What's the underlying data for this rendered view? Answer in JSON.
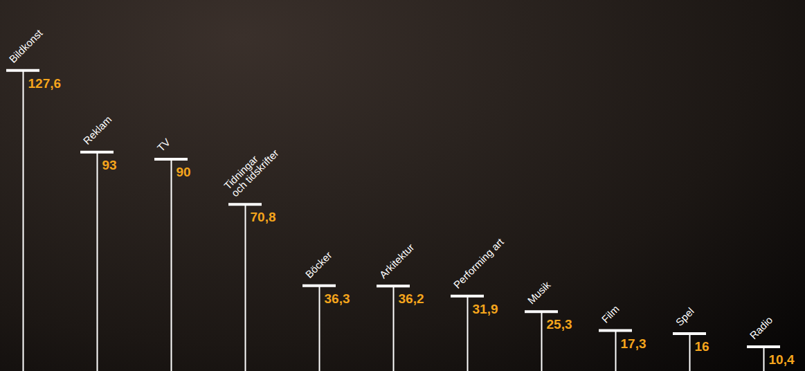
{
  "chart_data": {
    "type": "bar",
    "categories": [
      "Bildkonst",
      "Reklam",
      "TV",
      "Tidningar och tidskrifter",
      "Böcker",
      "Arkitektur",
      "Performing art",
      "Musik",
      "Film",
      "Spel",
      "Radio"
    ],
    "values": [
      127.6,
      93,
      90,
      70.8,
      36.3,
      36.2,
      31.9,
      25.3,
      17.3,
      16,
      10.4
    ],
    "value_labels": [
      "127,6",
      "93",
      "90",
      "70,8",
      "36,3",
      "36,2",
      "31,9",
      "25,3",
      "17,3",
      "16",
      "10,4"
    ],
    "color": "#ffffff",
    "ylim": [
      0,
      150
    ],
    "yticks": [],
    "grid": false,
    "tick_labels": false,
    "data_labels": true
  }
}
